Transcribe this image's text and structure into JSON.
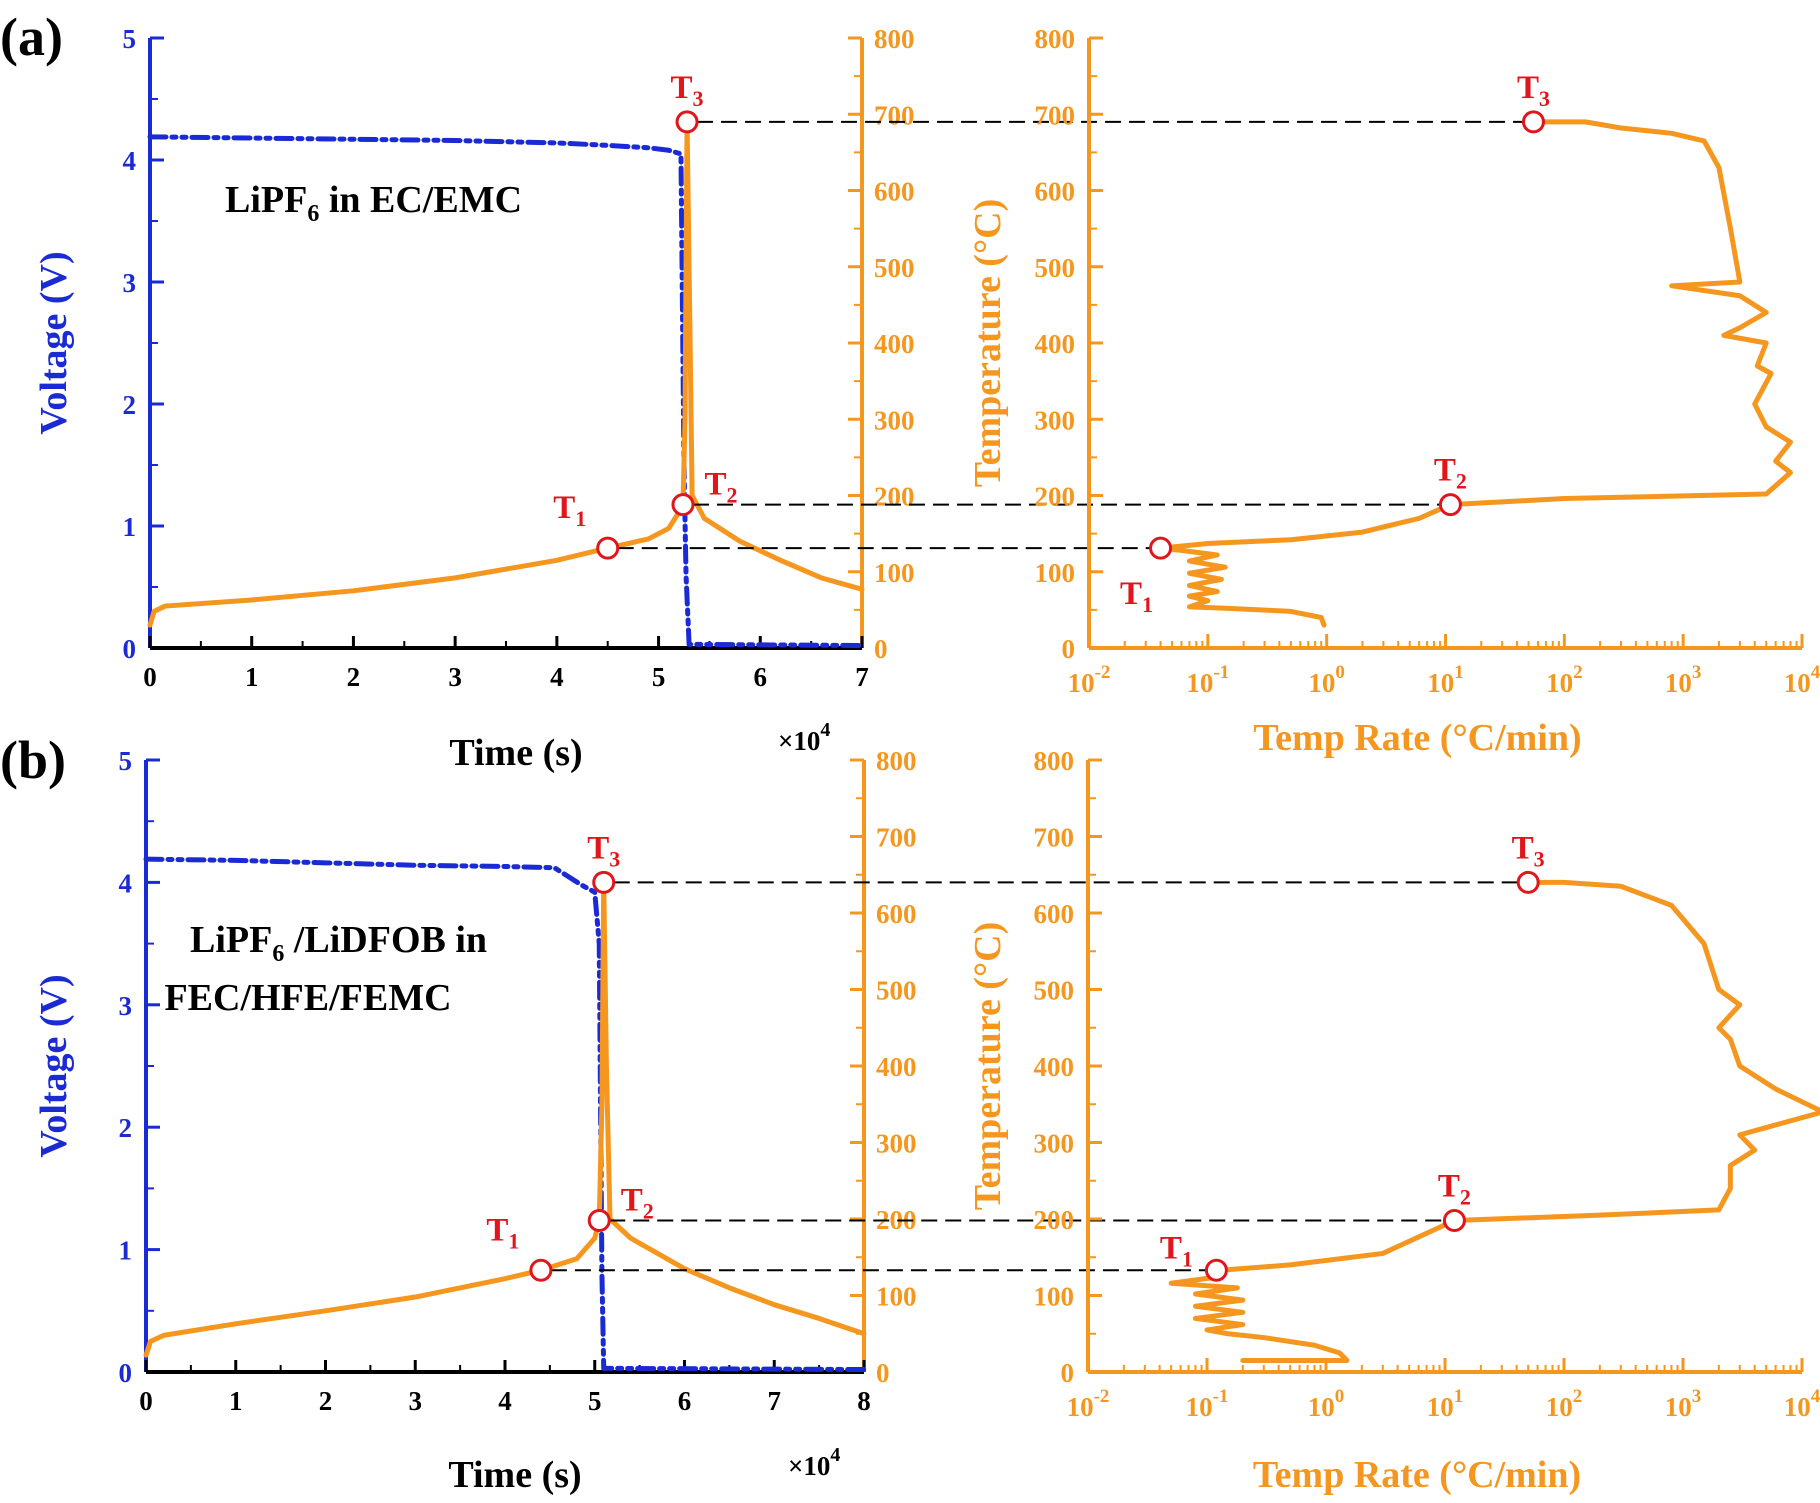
{
  "colors": {
    "voltage": "#1a2bd6",
    "temperature": "#f5961e",
    "marker": "#e0161c",
    "axis_black": "#000000",
    "guide": "#000000"
  },
  "chart_data": [
    {
      "panel": "(a)",
      "type": "line",
      "annotation": {
        "main": "LiPF",
        "sub": "6",
        "rest": " in EC/EMC"
      },
      "xlabel": "Time (s)",
      "x_multiplier": "×10",
      "x_exponent": "4",
      "xlim": [
        0,
        7
      ],
      "x_ticks": [
        0,
        1,
        2,
        3,
        4,
        5,
        6,
        7
      ],
      "ylabel_left": "Voltage (V)",
      "ylim_left": [
        0,
        5
      ],
      "y_ticks_left": [
        0,
        1,
        2,
        3,
        4,
        5
      ],
      "ylabel_right": "Temperature (°C)",
      "ylim_right": [
        0,
        800
      ],
      "y_ticks_right": [
        0,
        100,
        200,
        300,
        400,
        500,
        600,
        700,
        800
      ],
      "series": [
        {
          "name": "Voltage",
          "axis": "left",
          "style": "dash-dot",
          "points": [
            [
              0,
              4.19
            ],
            [
              1,
              4.18
            ],
            [
              2,
              4.17
            ],
            [
              3,
              4.16
            ],
            [
              4,
              4.14
            ],
            [
              4.5,
              4.12
            ],
            [
              4.9,
              4.1
            ],
            [
              5.1,
              4.08
            ],
            [
              5.22,
              4.05
            ],
            [
              5.25,
              1.5
            ],
            [
              5.27,
              0.6
            ],
            [
              5.3,
              0.03
            ],
            [
              7,
              0.02
            ]
          ]
        },
        {
          "name": "Temperature",
          "axis": "right",
          "style": "solid",
          "points": [
            [
              0,
              30
            ],
            [
              0.04,
              48
            ],
            [
              0.15,
              55
            ],
            [
              1,
              63
            ],
            [
              2,
              75
            ],
            [
              3,
              92
            ],
            [
              4,
              115
            ],
            [
              4.5,
              131
            ],
            [
              4.9,
              143
            ],
            [
              5.1,
              157
            ],
            [
              5.2,
              178
            ],
            [
              5.24,
              188
            ],
            [
              5.26,
              300
            ],
            [
              5.28,
              690
            ],
            [
              5.3,
              500
            ],
            [
              5.33,
              200
            ],
            [
              5.45,
              170
            ],
            [
              5.8,
              140
            ],
            [
              6.2,
              115
            ],
            [
              6.6,
              92
            ],
            [
              7,
              77
            ]
          ]
        }
      ],
      "markers": [
        {
          "label": "T",
          "sub": "1",
          "x": 4.5,
          "temp": 131
        },
        {
          "label": "T",
          "sub": "2",
          "x": 5.24,
          "temp": 188
        },
        {
          "label": "T",
          "sub": "3",
          "x": 5.28,
          "temp": 690
        }
      ]
    },
    {
      "panel": "(a)",
      "type": "line",
      "xlabel": "Temp Rate (°C/min)",
      "xscale": "log",
      "xlim": [
        0.01,
        10000
      ],
      "x_ticks": [
        {
          "base": "10",
          "exp": "-2"
        },
        {
          "base": "10",
          "exp": "-1"
        },
        {
          "base": "10",
          "exp": "0"
        },
        {
          "base": "10",
          "exp": "1"
        },
        {
          "base": "10",
          "exp": "2"
        },
        {
          "base": "10",
          "exp": "3"
        },
        {
          "base": "10",
          "exp": "4"
        }
      ],
      "ylim": [
        0,
        800
      ],
      "y_ticks": [
        0,
        100,
        200,
        300,
        400,
        500,
        600,
        700,
        800
      ],
      "series": [
        {
          "name": "Temp Rate",
          "style": "solid",
          "points": [
            [
              0.95,
              30
            ],
            [
              0.9,
              40
            ],
            [
              0.5,
              48
            ],
            [
              0.15,
              52
            ],
            [
              0.07,
              54
            ],
            [
              0.1,
              62
            ],
            [
              0.07,
              68
            ],
            [
              0.12,
              74
            ],
            [
              0.07,
              82
            ],
            [
              0.13,
              90
            ],
            [
              0.07,
              98
            ],
            [
              0.14,
              106
            ],
            [
              0.07,
              114
            ],
            [
              0.12,
              122
            ],
            [
              0.06,
              128
            ],
            [
              0.04,
              131
            ],
            [
              0.1,
              137
            ],
            [
              0.5,
              142
            ],
            [
              2,
              152
            ],
            [
              6,
              170
            ],
            [
              11,
              188
            ],
            [
              100,
              196
            ],
            [
              5000,
              202
            ],
            [
              8000,
              230
            ],
            [
              6000,
              245
            ],
            [
              8000,
              270
            ],
            [
              5000,
              290
            ],
            [
              4000,
              320
            ],
            [
              5500,
              360
            ],
            [
              4200,
              370
            ],
            [
              5000,
              400
            ],
            [
              2200,
              410
            ],
            [
              3000,
              420
            ],
            [
              5000,
              440
            ],
            [
              3000,
              462
            ],
            [
              800,
              475
            ],
            [
              3000,
              480
            ],
            [
              2500,
              550
            ],
            [
              2000,
              630
            ],
            [
              1500,
              665
            ],
            [
              800,
              675
            ],
            [
              300,
              682
            ],
            [
              150,
              690
            ],
            [
              55,
              690
            ]
          ]
        }
      ],
      "markers": [
        {
          "label": "T",
          "sub": "1",
          "x": 0.04,
          "temp": 131
        },
        {
          "label": "T",
          "sub": "2",
          "x": 11,
          "temp": 188
        },
        {
          "label": "T",
          "sub": "3",
          "x": 55,
          "temp": 690
        }
      ]
    },
    {
      "panel": "(b)",
      "type": "line",
      "annotation": {
        "main": "LiPF",
        "sub": "6",
        "rest": " /LiDFOB in",
        "line2": "FEC/HFE/FEMC"
      },
      "xlabel": "Time (s)",
      "x_multiplier": "×10",
      "x_exponent": "4",
      "xlim": [
        0,
        8
      ],
      "x_ticks": [
        0,
        1,
        2,
        3,
        4,
        5,
        6,
        7,
        8
      ],
      "ylabel_left": "Voltage (V)",
      "ylim_left": [
        0,
        5
      ],
      "y_ticks_left": [
        0,
        1,
        2,
        3,
        4,
        5
      ],
      "ylabel_right": "Temperature (°C)",
      "ylim_right": [
        0,
        800
      ],
      "y_ticks_right": [
        0,
        100,
        200,
        300,
        400,
        500,
        600,
        700,
        800
      ],
      "series": [
        {
          "name": "Voltage",
          "axis": "left",
          "style": "dash-dot",
          "points": [
            [
              0,
              4.19
            ],
            [
              1,
              4.18
            ],
            [
              2,
              4.16
            ],
            [
              3,
              4.14
            ],
            [
              4,
              4.13
            ],
            [
              4.55,
              4.12
            ],
            [
              4.7,
              4.05
            ],
            [
              4.85,
              3.98
            ],
            [
              5.0,
              3.92
            ],
            [
              5.05,
              3.5
            ],
            [
              5.08,
              0.8
            ],
            [
              5.1,
              0.03
            ],
            [
              8,
              0.02
            ]
          ]
        },
        {
          "name": "Temperature",
          "axis": "right",
          "style": "solid",
          "points": [
            [
              0,
              22
            ],
            [
              0.05,
              40
            ],
            [
              0.2,
              48
            ],
            [
              1,
              63
            ],
            [
              2,
              80
            ],
            [
              3,
              98
            ],
            [
              4,
              122
            ],
            [
              4.4,
              133
            ],
            [
              4.8,
              148
            ],
            [
              5.0,
              175
            ],
            [
              5.05,
              198
            ],
            [
              5.08,
              350
            ],
            [
              5.1,
              640
            ],
            [
              5.13,
              400
            ],
            [
              5.17,
              200
            ],
            [
              5.4,
              175
            ],
            [
              6,
              135
            ],
            [
              6.5,
              110
            ],
            [
              7,
              88
            ],
            [
              7.5,
              70
            ],
            [
              8,
              50
            ]
          ]
        }
      ],
      "markers": [
        {
          "label": "T",
          "sub": "1",
          "x": 4.4,
          "temp": 133
        },
        {
          "label": "T",
          "sub": "2",
          "x": 5.05,
          "temp": 198
        },
        {
          "label": "T",
          "sub": "3",
          "x": 5.1,
          "temp": 640
        }
      ]
    },
    {
      "panel": "(b)",
      "type": "line",
      "xlabel": "Temp Rate (°C/min)",
      "xscale": "log",
      "xlim": [
        0.01,
        10000
      ],
      "x_ticks": [
        {
          "base": "10",
          "exp": "-2"
        },
        {
          "base": "10",
          "exp": "-1"
        },
        {
          "base": "10",
          "exp": "0"
        },
        {
          "base": "10",
          "exp": "1"
        },
        {
          "base": "10",
          "exp": "2"
        },
        {
          "base": "10",
          "exp": "3"
        },
        {
          "base": "10",
          "exp": "4"
        }
      ],
      "ylim": [
        0,
        800
      ],
      "y_ticks": [
        0,
        100,
        200,
        300,
        400,
        500,
        600,
        700,
        800
      ],
      "series": [
        {
          "name": "Temp Rate",
          "style": "solid",
          "points": [
            [
              0.2,
              15
            ],
            [
              1.5,
              15
            ],
            [
              1.3,
              25
            ],
            [
              0.8,
              35
            ],
            [
              0.3,
              45
            ],
            [
              0.15,
              50
            ],
            [
              0.1,
              55
            ],
            [
              0.2,
              62
            ],
            [
              0.08,
              70
            ],
            [
              0.2,
              78
            ],
            [
              0.08,
              86
            ],
            [
              0.2,
              94
            ],
            [
              0.08,
              102
            ],
            [
              0.18,
              110
            ],
            [
              0.05,
              116
            ],
            [
              0.12,
              124
            ],
            [
              0.13,
              133
            ],
            [
              0.5,
              140
            ],
            [
              3,
              155
            ],
            [
              12,
              198
            ],
            [
              200,
              205
            ],
            [
              2000,
              212
            ],
            [
              2500,
              240
            ],
            [
              2500,
              270
            ],
            [
              4000,
              290
            ],
            [
              3000,
              310
            ],
            [
              15000,
              340
            ],
            [
              6000,
              370
            ],
            [
              3000,
              400
            ],
            [
              2500,
              435
            ],
            [
              2000,
              450
            ],
            [
              3000,
              480
            ],
            [
              2000,
              500
            ],
            [
              1500,
              560
            ],
            [
              800,
              610
            ],
            [
              300,
              635
            ],
            [
              100,
              640
            ],
            [
              50,
              640
            ]
          ]
        }
      ],
      "markers": [
        {
          "label": "T",
          "sub": "1",
          "x": 0.12,
          "temp": 133
        },
        {
          "label": "T",
          "sub": "2",
          "x": 12,
          "temp": 198
        },
        {
          "label": "T",
          "sub": "3",
          "x": 50,
          "temp": 640
        }
      ]
    }
  ]
}
